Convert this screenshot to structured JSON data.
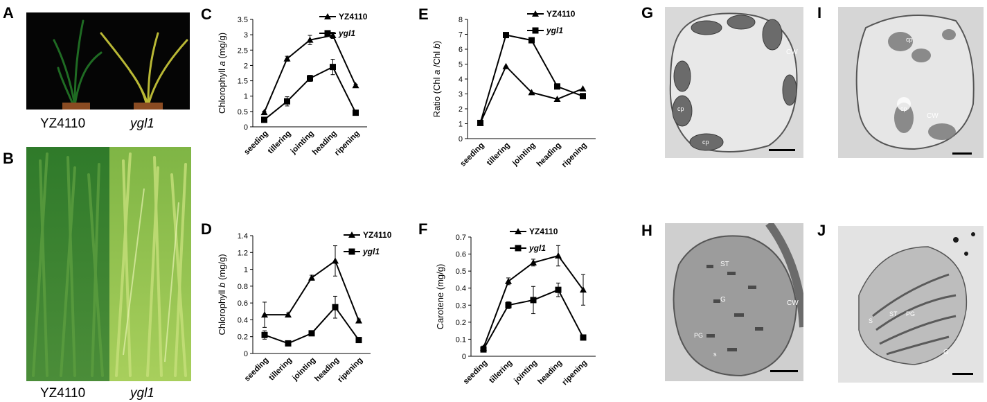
{
  "panels": {
    "A": {
      "label": "A",
      "captions": [
        "YZ4110",
        "ygl1"
      ]
    },
    "B": {
      "label": "B",
      "captions": [
        "YZ4110",
        "ygl1"
      ]
    },
    "G": {
      "label": "G",
      "annotations": [
        "CW",
        "cp",
        "cp"
      ]
    },
    "H": {
      "label": "H",
      "annotations": [
        "ST",
        "G",
        "PG",
        "s",
        "CW"
      ]
    },
    "I": {
      "label": "I",
      "annotations": [
        "cp",
        "cp",
        "CW"
      ]
    },
    "J": {
      "label": "J",
      "annotations": [
        "S",
        "ST",
        "PG",
        "G"
      ]
    }
  },
  "chart_data": [
    {
      "panel_label": "C",
      "type": "line",
      "categories": [
        "seeding",
        "tillering",
        "jointing",
        "heading",
        "ripening"
      ],
      "ylabel_parts": [
        "Chlorophyll ",
        "a",
        "  (mg/g)"
      ],
      "ylim": [
        0,
        3.5
      ],
      "yticks": [
        0,
        0.5,
        1,
        1.5,
        2,
        2.5,
        3,
        3.5
      ],
      "ytick_labels": [
        "0",
        "0.5",
        "1",
        "1.5",
        "2",
        "2.5",
        "3",
        "3.5"
      ],
      "legend_placement": "top-right",
      "series": [
        {
          "name": "YZ4110",
          "marker": "triangle",
          "values": [
            0.47,
            2.22,
            2.83,
            2.98,
            1.35
          ],
          "errors": [
            0.04,
            0.08,
            0.15,
            0.1,
            0.04
          ]
        },
        {
          "name": "ygl1",
          "marker": "square",
          "values": [
            0.23,
            0.83,
            1.58,
            1.95,
            0.46
          ],
          "errors": [
            0.03,
            0.15,
            0.1,
            0.25,
            0.03
          ]
        }
      ]
    },
    {
      "panel_label": "D",
      "type": "line",
      "categories": [
        "seeding",
        "tillering",
        "jointing",
        "heading",
        "ripening"
      ],
      "ylabel_parts": [
        "Chlorophyll ",
        "b",
        "  (mg/g)"
      ],
      "ylim": [
        0,
        1.4
      ],
      "yticks": [
        0,
        0.2,
        0.4,
        0.6,
        0.8,
        1,
        1.2,
        1.4
      ],
      "ytick_labels": [
        "0",
        "0.2",
        "0.4",
        "0.6",
        "0.8",
        "1",
        "1.2",
        "1.4"
      ],
      "legend_placement": "top-right",
      "series": [
        {
          "name": "YZ4110",
          "marker": "triangle",
          "values": [
            0.46,
            0.46,
            0.9,
            1.1,
            0.39
          ],
          "errors": [
            0.15,
            0.02,
            0.03,
            0.18,
            0.02
          ]
        },
        {
          "name": "ygl1",
          "marker": "square",
          "values": [
            0.22,
            0.12,
            0.24,
            0.55,
            0.16
          ],
          "errors": [
            0.05,
            0.02,
            0.02,
            0.13,
            0.02
          ]
        }
      ]
    },
    {
      "panel_label": "E",
      "type": "line",
      "categories": [
        "seeding",
        "tillering",
        "jointing",
        "heading",
        "ripening"
      ],
      "ylabel_parts": [
        "Ratio  (Chl ",
        "a",
        " /Chl ",
        "b",
        ")"
      ],
      "ylim": [
        0,
        8
      ],
      "yticks": [
        0,
        1,
        2,
        3,
        4,
        5,
        6,
        7,
        8
      ],
      "ytick_labels": [
        "0",
        "1",
        "2",
        "3",
        "4",
        "5",
        "6",
        "7",
        "8"
      ],
      "legend_placement": "top-right",
      "series": [
        {
          "name": "YZ4110",
          "marker": "triangle",
          "values": [
            1.05,
            4.85,
            3.1,
            2.65,
            3.35
          ]
        },
        {
          "name": "ygl1",
          "marker": "square",
          "values": [
            1.05,
            6.95,
            6.6,
            3.5,
            2.85
          ]
        }
      ]
    },
    {
      "panel_label": "F",
      "type": "line",
      "categories": [
        "seeding",
        "tillering",
        "jointing",
        "heading",
        "ripening"
      ],
      "ylabel_parts": [
        "Carotene  (mg/g)"
      ],
      "ylim": [
        0,
        0.7
      ],
      "yticks": [
        0,
        0.1,
        0.2,
        0.3,
        0.4,
        0.5,
        0.6,
        0.7
      ],
      "ytick_labels": [
        "0",
        "0.1",
        "0.2",
        "0.3",
        "0.4",
        "0.5",
        "0.6",
        "0.7"
      ],
      "legend_placement": "top-right",
      "series": [
        {
          "name": "YZ4110",
          "marker": "triangle",
          "values": [
            0.05,
            0.44,
            0.55,
            0.59,
            0.39
          ],
          "errors": [
            0.01,
            0.02,
            0.02,
            0.06,
            0.09
          ]
        },
        {
          "name": "ygl1",
          "marker": "square",
          "values": [
            0.04,
            0.3,
            0.33,
            0.39,
            0.11
          ],
          "errors": [
            0.01,
            0.02,
            0.08,
            0.04,
            0.01
          ]
        }
      ]
    }
  ]
}
